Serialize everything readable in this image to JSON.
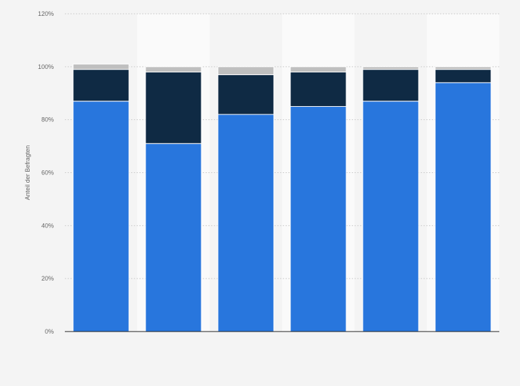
{
  "chart_data": {
    "type": "bar",
    "stacked": true,
    "categories": [
      "",
      "",
      "",
      "",
      "",
      ""
    ],
    "series": [
      {
        "name": "",
        "color": "#2876dd",
        "values": [
          87,
          71,
          82,
          85,
          87,
          94
        ]
      },
      {
        "name": "",
        "color": "#0f2a44",
        "values": [
          12,
          27,
          15,
          13,
          12,
          5
        ]
      },
      {
        "name": "",
        "color": "#bfbfbf",
        "values": [
          2,
          2,
          3,
          2,
          1,
          1
        ]
      }
    ],
    "title": "",
    "xlabel": "",
    "ylabel": "Anteil der Befragten",
    "ylim": [
      0,
      120
    ],
    "yticks": [
      "0%",
      "20%",
      "40%",
      "60%",
      "80%",
      "100%",
      "120%"
    ],
    "ytick_values": [
      0,
      20,
      40,
      60,
      80,
      100,
      120
    ],
    "grid": true,
    "legend": "none"
  }
}
